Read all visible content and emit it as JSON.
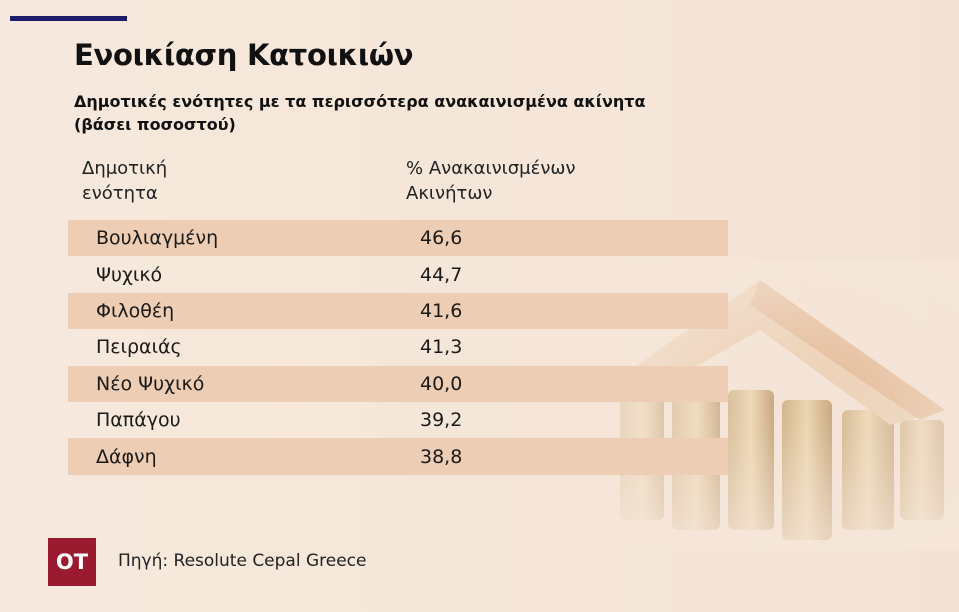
{
  "header": {
    "title": "Ενοικίαση Κατοικιών",
    "subtitle": [
      "Δημοτικές ενότητες με τα περισσότερα ανακαινισμένα ακίνητα",
      "(βάσει ποσοστού)"
    ]
  },
  "table": {
    "columns": [
      "Δημοτική ενότητα",
      "% Ανακαινισμένων Ακινήτων"
    ],
    "rows": [
      [
        "Βουλιαγμένη",
        "46,6"
      ],
      [
        "Ψυχικό",
        "44,7"
      ],
      [
        "Φιλοθέη",
        "41,6"
      ],
      [
        "Πειραιάς",
        "41,3"
      ],
      [
        "Νέο Ψυχικό",
        "40,0"
      ],
      [
        "Παπάγου",
        "39,2"
      ],
      [
        "Δάφνη",
        "38,8"
      ]
    ]
  },
  "footer": {
    "logo": "OT",
    "source": "Πηγή: Resolute Cepal Greece"
  }
}
